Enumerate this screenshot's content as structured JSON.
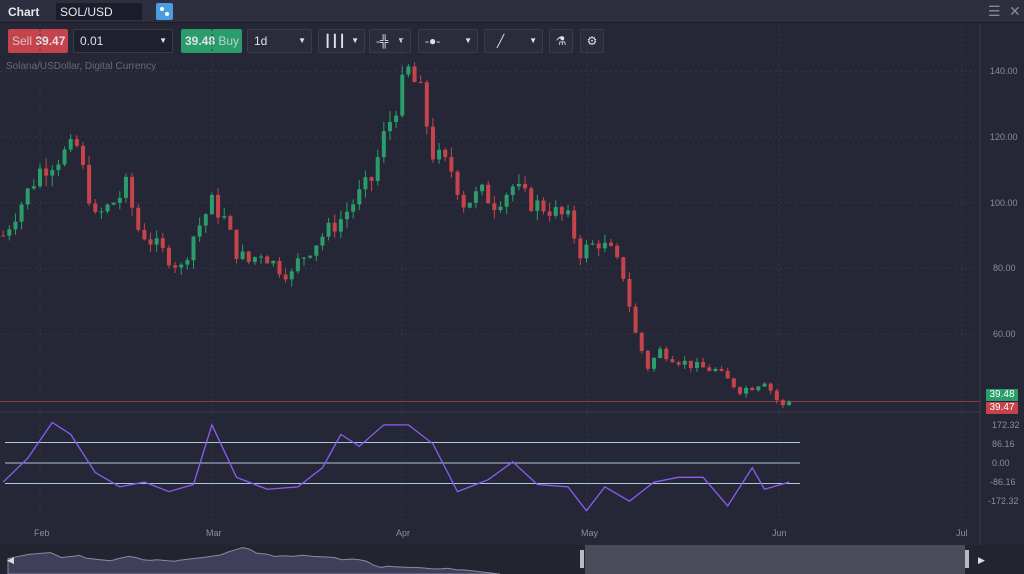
{
  "title_bar": {
    "title": "Chart",
    "symbol": "SOL/USD",
    "link_icon": "link-icon",
    "menu_icon": "hamburger-icon",
    "close_icon": "close-icon"
  },
  "toolbar": {
    "sell_label": "Sell",
    "sell_price": "39.47",
    "quantity": "0.01",
    "buy_price": "39.48",
    "buy_label": "Buy",
    "interval": "1d",
    "chart_type_icon": "candlestick-icon",
    "indicator_icon": "bar-indicator-icon",
    "crosshair_icon": "clock-line-icon",
    "drawing_icon": "line-draw-icon",
    "studies_icon": "flask-icon",
    "settings_icon": "gear-icon"
  },
  "instrument_description": "Solana/USDollar, Digital Currency",
  "colors": {
    "up": "#2a9d6b",
    "down": "#c5444b",
    "indicator": "#8b5cf6",
    "background": "#262736"
  },
  "price_axis": {
    "ticks": [
      "140.00",
      "120.00",
      "100.00",
      "80.00",
      "60.00"
    ],
    "ask_tag": "39.48",
    "bid_tag": "39.47"
  },
  "indicator_axis": {
    "ticks": [
      "172.32",
      "86.16",
      "0.00",
      "-86.16",
      "-172.32"
    ]
  },
  "time_axis": {
    "ticks": [
      "Feb",
      "Mar",
      "Apr",
      "May",
      "Jun",
      "Jul"
    ]
  },
  "chart_data": {
    "type": "candlestick",
    "ylim": [
      30,
      145
    ],
    "closes": [
      [
        "2022-01-26",
        90
      ],
      [
        "2022-02-01",
        110
      ],
      [
        "2022-02-05",
        115
      ],
      [
        "2022-02-07",
        117
      ],
      [
        "2022-02-10",
        95
      ],
      [
        "2022-02-14",
        102
      ],
      [
        "2022-02-15",
        105
      ],
      [
        "2022-02-17",
        92
      ],
      [
        "2022-02-21",
        85
      ],
      [
        "2022-02-24",
        80
      ],
      [
        "2022-02-26",
        90
      ],
      [
        "2022-03-01",
        100
      ],
      [
        "2022-03-03",
        95
      ],
      [
        "2022-03-05",
        85
      ],
      [
        "2022-03-07",
        82
      ],
      [
        "2022-03-09",
        85
      ],
      [
        "2022-03-12",
        80
      ],
      [
        "2022-03-14",
        78
      ],
      [
        "2022-03-15",
        82
      ],
      [
        "2022-03-19",
        90
      ],
      [
        "2022-03-22",
        95
      ],
      [
        "2022-03-24",
        100
      ],
      [
        "2022-03-27",
        107
      ],
      [
        "2022-03-29",
        120
      ],
      [
        "2022-03-31",
        130
      ],
      [
        "2022-04-02",
        140
      ],
      [
        "2022-04-04",
        133
      ],
      [
        "2022-04-06",
        115
      ],
      [
        "2022-04-09",
        110
      ],
      [
        "2022-04-11",
        100
      ],
      [
        "2022-04-14",
        103
      ],
      [
        "2022-04-16",
        100
      ],
      [
        "2022-04-19",
        105
      ],
      [
        "2022-04-22",
        100
      ],
      [
        "2022-04-25",
        98
      ],
      [
        "2022-04-28",
        95
      ],
      [
        "2022-04-30",
        85
      ],
      [
        "2022-05-03",
        88
      ],
      [
        "2022-05-05",
        85
      ],
      [
        "2022-05-07",
        78
      ],
      [
        "2022-05-09",
        60
      ],
      [
        "2022-05-11",
        50
      ],
      [
        "2022-05-13",
        55
      ],
      [
        "2022-05-16",
        52
      ],
      [
        "2022-05-19",
        50
      ],
      [
        "2022-05-22",
        49
      ],
      [
        "2022-05-26",
        43
      ],
      [
        "2022-05-28",
        44
      ],
      [
        "2022-05-30",
        46
      ],
      [
        "2022-06-01",
        40
      ],
      [
        "2022-06-02",
        38
      ],
      [
        "2022-06-03",
        39.47
      ]
    ],
    "indicator": {
      "levels": [
        86.16,
        0,
        -86.16
      ],
      "ylim": [
        -200,
        200
      ],
      "values": [
        [
          "2022-01-26",
          -80
        ],
        [
          "2022-01-30",
          20
        ],
        [
          "2022-02-03",
          170
        ],
        [
          "2022-02-06",
          120
        ],
        [
          "2022-02-10",
          -40
        ],
        [
          "2022-02-14",
          -100
        ],
        [
          "2022-02-18",
          -80
        ],
        [
          "2022-02-22",
          -120
        ],
        [
          "2022-02-26",
          -90
        ],
        [
          "2022-03-01",
          160
        ],
        [
          "2022-03-05",
          -60
        ],
        [
          "2022-03-10",
          -110
        ],
        [
          "2022-03-15",
          -100
        ],
        [
          "2022-03-19",
          -20
        ],
        [
          "2022-03-22",
          120
        ],
        [
          "2022-03-25",
          70
        ],
        [
          "2022-03-29",
          160
        ],
        [
          "2022-04-02",
          160
        ],
        [
          "2022-04-06",
          80
        ],
        [
          "2022-04-10",
          -120
        ],
        [
          "2022-04-15",
          -70
        ],
        [
          "2022-04-19",
          5
        ],
        [
          "2022-04-23",
          -90
        ],
        [
          "2022-04-28",
          -100
        ],
        [
          "2022-05-01",
          -200
        ],
        [
          "2022-05-04",
          -100
        ],
        [
          "2022-05-08",
          -160
        ],
        [
          "2022-05-12",
          -80
        ],
        [
          "2022-05-16",
          -60
        ],
        [
          "2022-05-20",
          -60
        ],
        [
          "2022-05-24",
          -180
        ],
        [
          "2022-05-28",
          -20
        ],
        [
          "2022-05-30",
          -110
        ],
        [
          "2022-06-03",
          -80
        ]
      ]
    }
  }
}
